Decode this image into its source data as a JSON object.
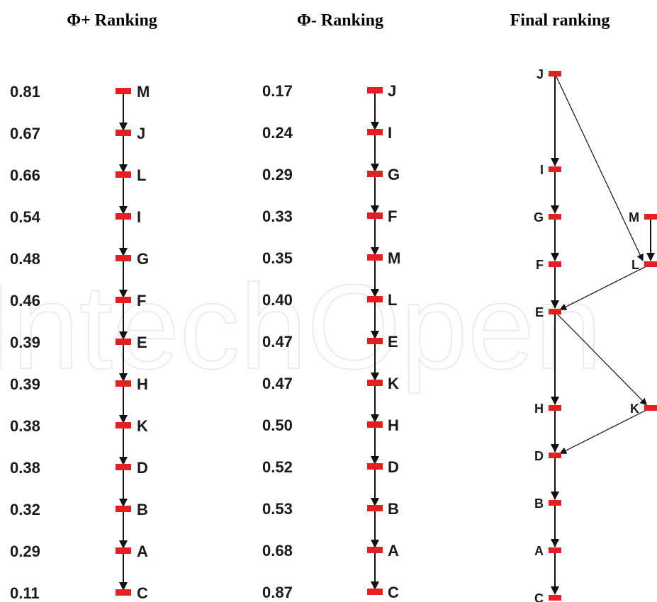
{
  "watermark": "IntechOpen",
  "colors": {
    "node": "#e41f1f",
    "edge": "#111111"
  },
  "panels": {
    "phi_plus": {
      "title": "Φ+ Ranking",
      "nodes": [
        {
          "label": "M",
          "value": "0.81"
        },
        {
          "label": "J",
          "value": "0.67"
        },
        {
          "label": "L",
          "value": "0.66"
        },
        {
          "label": "I",
          "value": "0.54"
        },
        {
          "label": "G",
          "value": "0.48"
        },
        {
          "label": "F",
          "value": "0.46"
        },
        {
          "label": "E",
          "value": "0.39"
        },
        {
          "label": "H",
          "value": "0.39"
        },
        {
          "label": "K",
          "value": "0.38"
        },
        {
          "label": "D",
          "value": "0.38"
        },
        {
          "label": "B",
          "value": "0.32"
        },
        {
          "label": "A",
          "value": "0.29"
        },
        {
          "label": "C",
          "value": "0.11"
        }
      ]
    },
    "phi_minus": {
      "title": "Φ- Ranking",
      "nodes": [
        {
          "label": "J",
          "value": "0.17"
        },
        {
          "label": "I",
          "value": "0.24"
        },
        {
          "label": "G",
          "value": "0.29"
        },
        {
          "label": "F",
          "value": "0.33"
        },
        {
          "label": "M",
          "value": "0.35"
        },
        {
          "label": "L",
          "value": "0.40"
        },
        {
          "label": "E",
          "value": "0.47"
        },
        {
          "label": "K",
          "value": "0.47"
        },
        {
          "label": "H",
          "value": "0.50"
        },
        {
          "label": "D",
          "value": "0.52"
        },
        {
          "label": "B",
          "value": "0.53"
        },
        {
          "label": "A",
          "value": "0.68"
        },
        {
          "label": "C",
          "value": "0.87"
        }
      ]
    },
    "final": {
      "title": "Final ranking",
      "nodes": [
        "J",
        "I",
        "G",
        "F",
        "E",
        "H",
        "D",
        "B",
        "A",
        "C",
        "M",
        "L",
        "K"
      ],
      "edges": [
        [
          "J",
          "I"
        ],
        [
          "I",
          "G"
        ],
        [
          "G",
          "F"
        ],
        [
          "F",
          "E"
        ],
        [
          "E",
          "H"
        ],
        [
          "H",
          "D"
        ],
        [
          "D",
          "B"
        ],
        [
          "B",
          "A"
        ],
        [
          "A",
          "C"
        ],
        [
          "J",
          "L"
        ],
        [
          "M",
          "L"
        ],
        [
          "L",
          "E"
        ],
        [
          "E",
          "K"
        ],
        [
          "K",
          "D"
        ]
      ]
    }
  }
}
